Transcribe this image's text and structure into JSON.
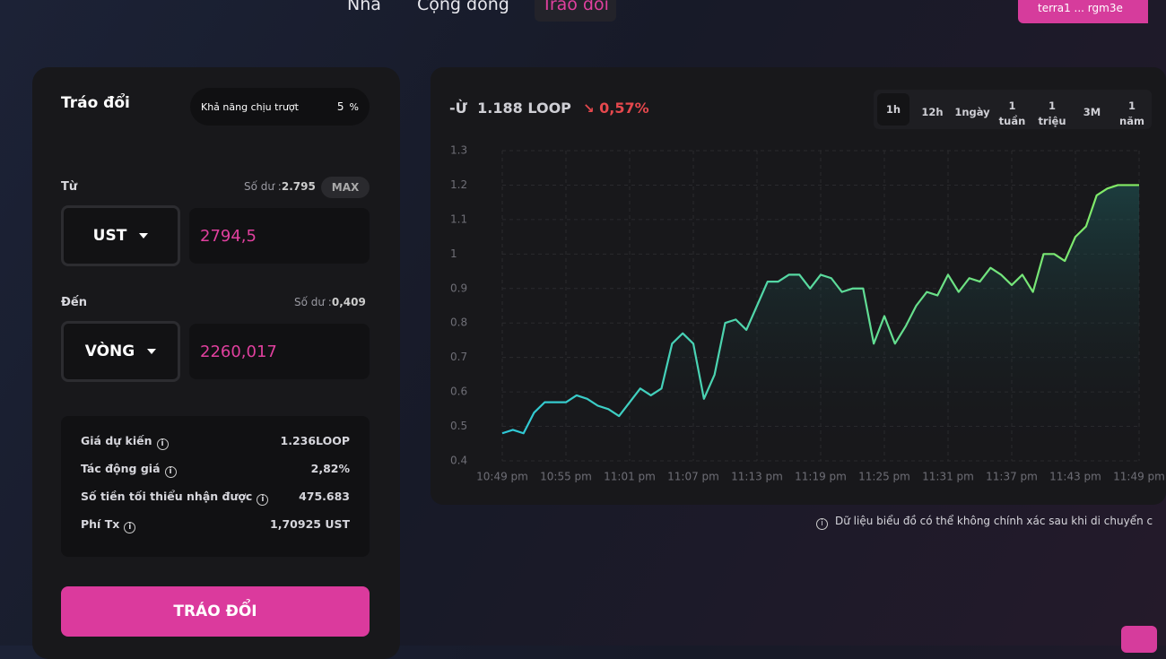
{
  "nav": [
    "Nhà",
    "Cộng đồng",
    "Tráo đổi"
  ],
  "wallet": "terra1 ... rgm3e",
  "swap": {
    "title": "Tráo đổi",
    "slippage_label": "Khả năng chịu trượt",
    "slippage_value": "5",
    "slippage_unit": "%",
    "from": {
      "label": "Từ",
      "balance_label": "Số dư :",
      "balance": "2.795",
      "max": "MAX",
      "token": "UST",
      "amount": "2794,5"
    },
    "to": {
      "label": "Đến",
      "balance_label": "Số dư :",
      "balance": "0,409",
      "token": "VÒNG",
      "amount": "2260,017"
    },
    "info": [
      [
        "Giá dự kiến",
        "1.236LOOP"
      ],
      [
        "Tác động giá",
        "2,82%"
      ],
      [
        "Số tiền tối thiểu nhận được",
        "475.683"
      ],
      [
        "Phí Tx",
        "1,70925 UST"
      ]
    ],
    "button": "TRÁO ĐỔI"
  },
  "price": {
    "prefix": "-Ừ",
    "value": "1.188 LOOP",
    "change": "0,57%"
  },
  "timeframes": [
    [
      "1h"
    ],
    [
      "12h"
    ],
    [
      "1ngày"
    ],
    [
      "1",
      "tuần"
    ],
    [
      "1",
      "triệu"
    ],
    [
      "3M"
    ],
    [
      "1",
      "năm"
    ]
  ],
  "note": "Dữ liệu biểu đồ có thể không chính xác sau khi di chuyển c",
  "chart_data": {
    "type": "line",
    "categories": [
      "10:49 pm",
      null,
      null,
      null,
      null,
      null,
      "10:55 pm",
      null,
      null,
      null,
      null,
      null,
      "11:01 pm",
      null,
      null,
      null,
      null,
      null,
      "11:07 pm",
      null,
      null,
      null,
      null,
      null,
      "11:13 pm",
      null,
      null,
      null,
      null,
      null,
      "11:19 pm",
      null,
      null,
      null,
      null,
      null,
      "11:25 pm",
      null,
      null,
      null,
      null,
      null,
      "11:31 pm",
      null,
      null,
      null,
      null,
      null,
      "11:37 pm",
      null,
      null,
      null,
      null,
      null,
      "11:43 pm",
      null,
      null,
      null,
      null,
      null,
      "11:49 pm"
    ],
    "series": [
      {
        "colors": [
          "#2ec8d8",
          "#86ec62"
        ],
        "values": [
          0.48,
          0.49,
          0.48,
          0.54,
          0.57,
          0.57,
          0.57,
          0.59,
          0.58,
          0.56,
          0.55,
          0.53,
          0.57,
          0.61,
          0.59,
          0.61,
          0.74,
          0.77,
          0.74,
          0.58,
          0.65,
          0.8,
          0.81,
          0.78,
          0.85,
          0.92,
          0.92,
          0.94,
          0.94,
          0.9,
          0.94,
          0.93,
          0.89,
          0.9,
          0.9,
          0.74,
          0.82,
          0.74,
          0.79,
          0.85,
          0.89,
          0.88,
          0.94,
          0.89,
          0.93,
          0.92,
          0.96,
          0.94,
          0.91,
          0.94,
          0.89,
          1.0,
          1.0,
          0.98,
          1.05,
          1.08,
          1.17,
          1.19,
          1.2,
          1.2,
          1.2
        ]
      }
    ],
    "ylim": [
      0.4,
      1.3
    ],
    "yticks": [
      0.4,
      0.5,
      0.6,
      0.7,
      0.8,
      0.9,
      1,
      1.1,
      1.2,
      1.3
    ],
    "grid": true
  }
}
